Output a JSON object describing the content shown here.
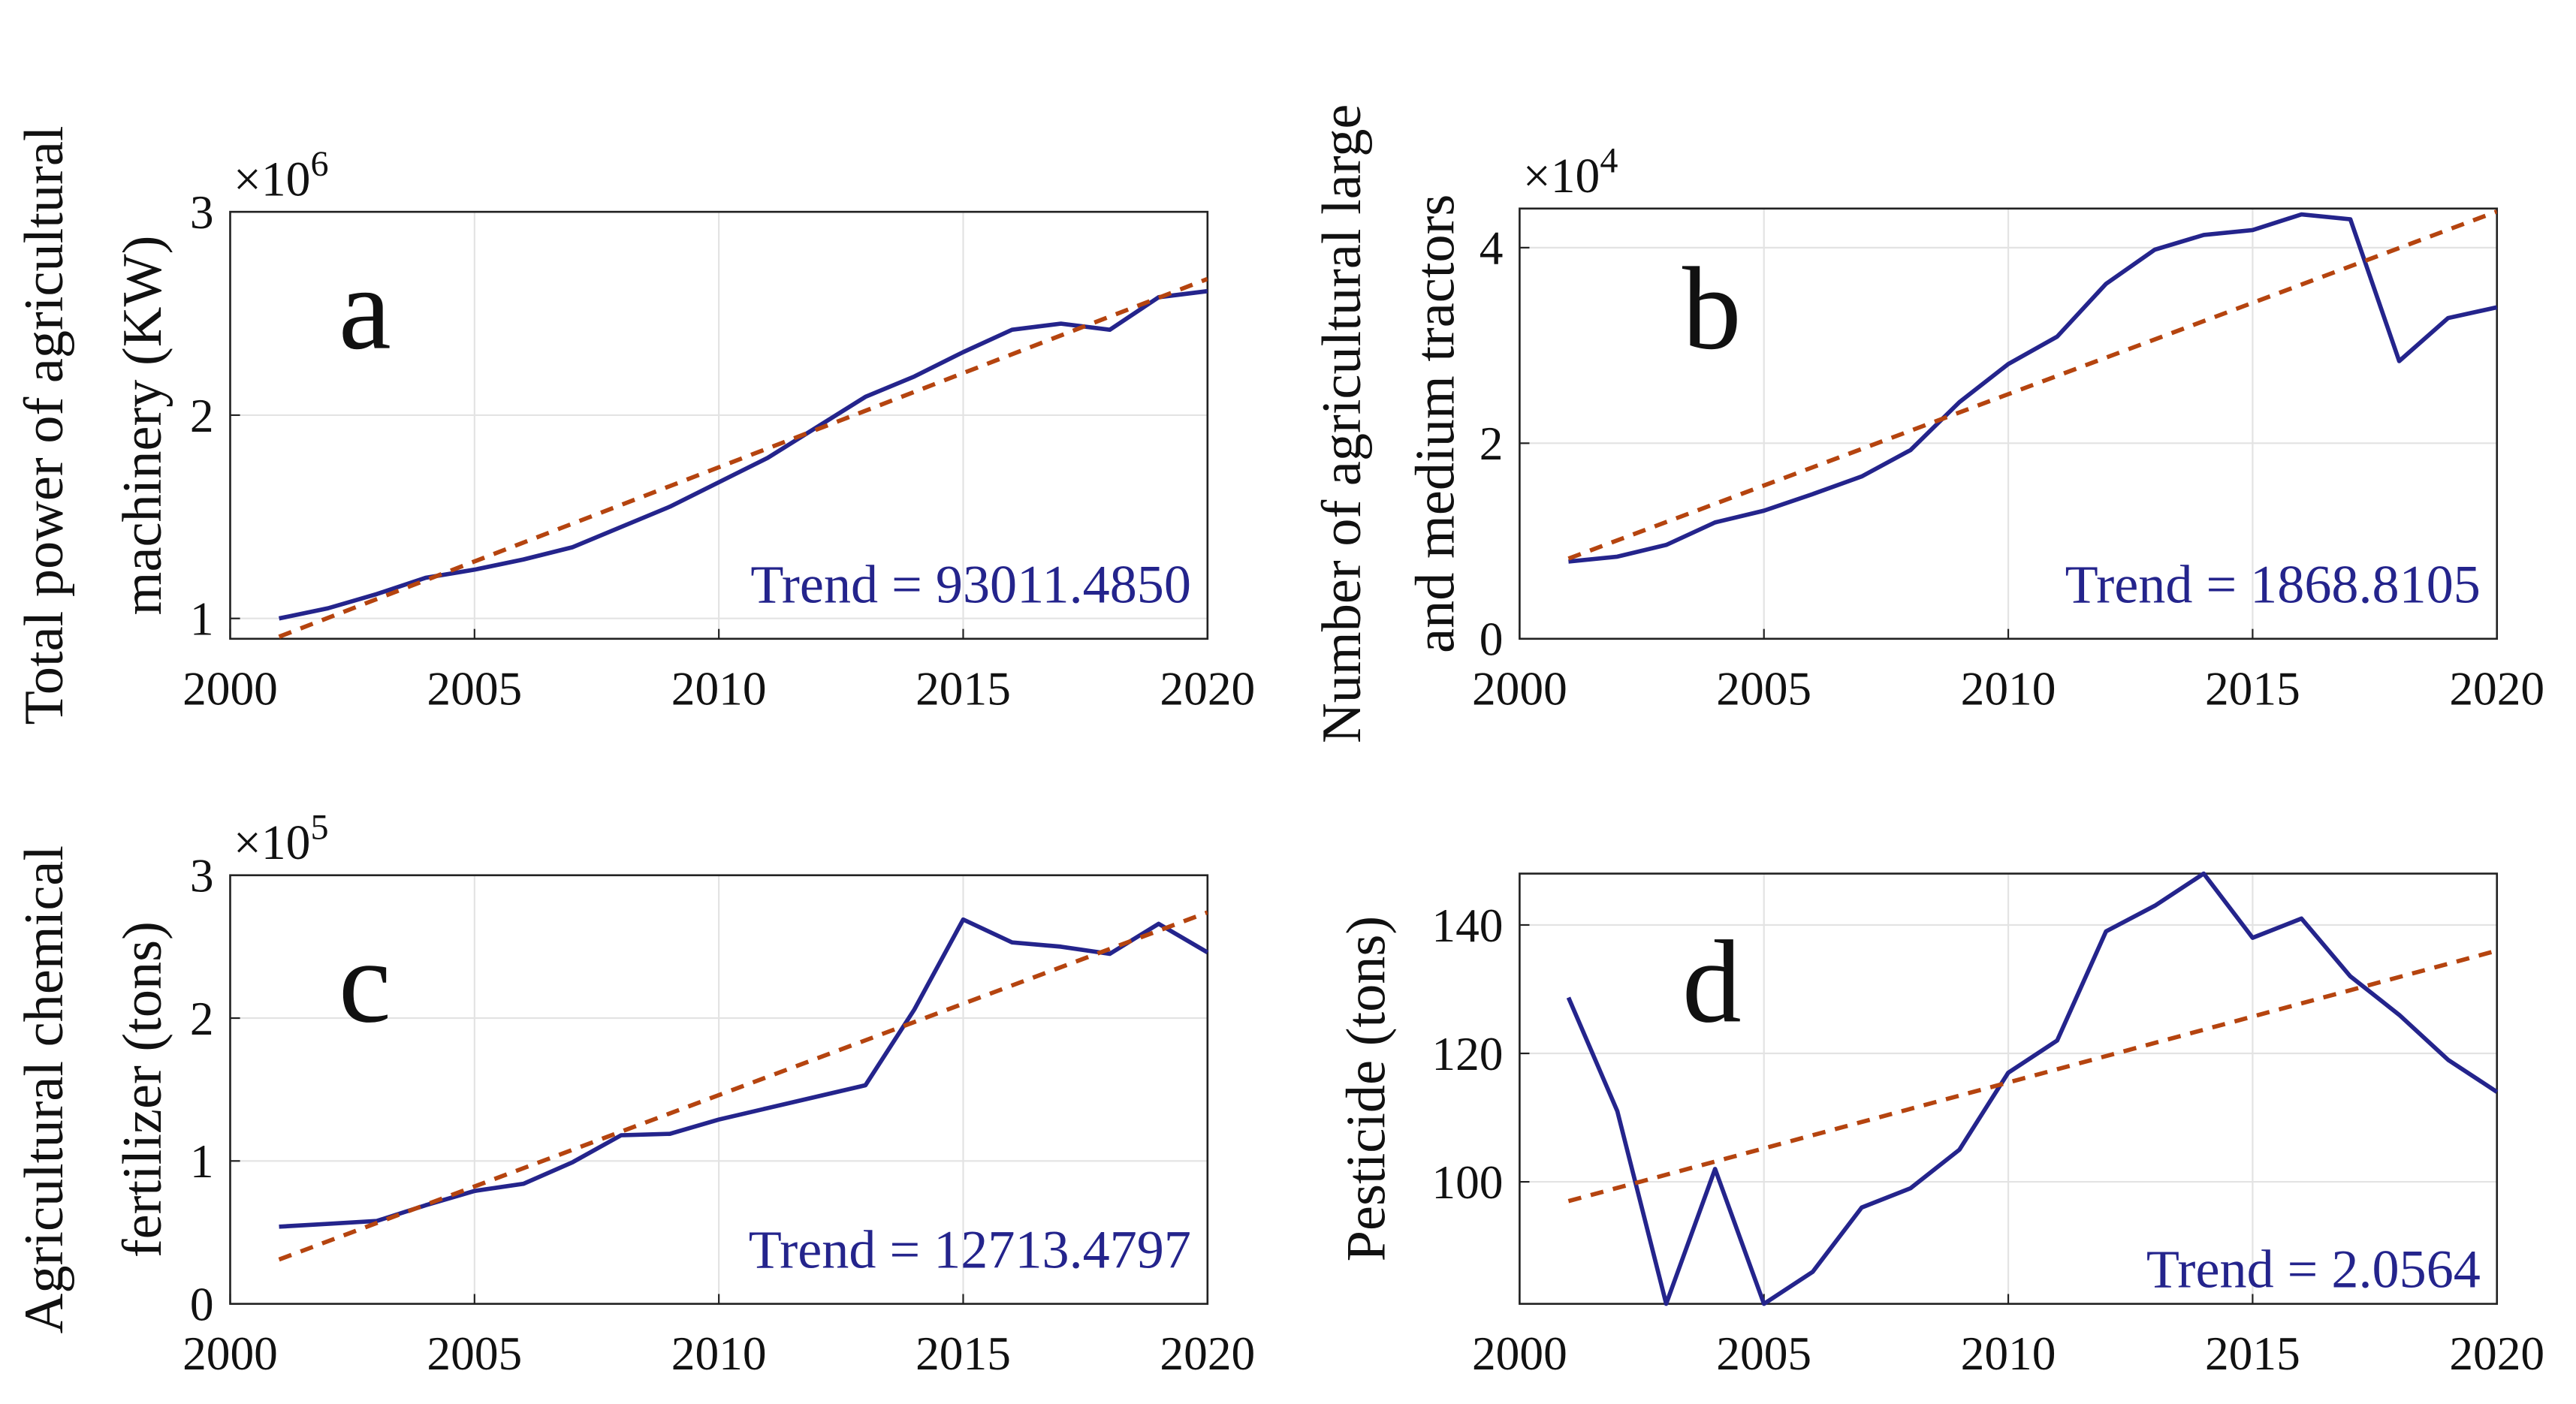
{
  "chart_data": [
    {
      "type": "line",
      "letter": "a",
      "y_label": [
        "Total power of agricultural",
        "machinery (KW)"
      ],
      "y_multiplier": {
        "base": "×10",
        "exponent": "6"
      },
      "annotation": "Trend = 93011.4850",
      "x": [
        2001,
        2002,
        2003,
        2004,
        2005,
        2006,
        2007,
        2008,
        2009,
        2010,
        2011,
        2012,
        2013,
        2014,
        2015,
        2016,
        2017,
        2018,
        2019,
        2020
      ],
      "series": [
        {
          "color": "#24248c",
          "values": [
            1.0,
            1.05,
            1.12,
            1.2,
            1.24,
            1.29,
            1.35,
            1.45,
            1.55,
            1.67,
            1.79,
            1.94,
            2.09,
            2.19,
            2.31,
            2.42,
            2.45,
            2.42,
            2.58,
            2.61
          ]
        }
      ],
      "trend": {
        "color": "#b5440f",
        "x": [
          2001,
          2020
        ],
        "values": [
          0.91,
          2.67
        ]
      },
      "xlim": [
        2000,
        2020
      ],
      "xticks": [
        2000,
        2005,
        2010,
        2015,
        2020
      ],
      "ylim": [
        0.9,
        3
      ],
      "yticks": [
        1,
        2,
        3
      ],
      "grid": true
    },
    {
      "type": "line",
      "letter": "b",
      "y_label": [
        "Number of agricultural large",
        "and medium tractors"
      ],
      "y_multiplier": {
        "base": "×10",
        "exponent": "4"
      },
      "annotation": "Trend = 1868.8105",
      "x": [
        2001,
        2002,
        2003,
        2004,
        2005,
        2006,
        2007,
        2008,
        2009,
        2010,
        2011,
        2012,
        2013,
        2014,
        2015,
        2016,
        2017,
        2018,
        2019,
        2020
      ],
      "series": [
        {
          "color": "#24248c",
          "values": [
            0.79,
            0.84,
            0.96,
            1.19,
            1.31,
            1.48,
            1.66,
            1.93,
            2.42,
            2.81,
            3.09,
            3.63,
            3.98,
            4.13,
            4.18,
            4.34,
            4.29,
            2.84,
            3.28,
            3.39
          ]
        }
      ],
      "trend": {
        "color": "#b5440f",
        "x": [
          2001,
          2020
        ],
        "values": [
          0.82,
          4.37
        ]
      },
      "xlim": [
        2000,
        2020
      ],
      "xticks": [
        2000,
        2005,
        2010,
        2015,
        2020
      ],
      "ylim": [
        0,
        4.4
      ],
      "yticks": [
        0,
        2,
        4
      ],
      "grid": true
    },
    {
      "type": "line",
      "letter": "c",
      "y_label": [
        "Agricultural chemical",
        "fertilizer (tons)"
      ],
      "y_multiplier": {
        "base": "×10",
        "exponent": "5"
      },
      "annotation": "Trend = 12713.4797",
      "x": [
        2001,
        2002,
        2003,
        2004,
        2005,
        2006,
        2007,
        2008,
        2009,
        2010,
        2011,
        2012,
        2013,
        2014,
        2015,
        2016,
        2017,
        2018,
        2019,
        2020
      ],
      "series": [
        {
          "color": "#24248c",
          "values": [
            0.54,
            0.56,
            0.58,
            0.69,
            0.79,
            0.84,
            0.99,
            1.18,
            1.19,
            1.29,
            1.37,
            1.45,
            1.53,
            2.06,
            2.69,
            2.53,
            2.5,
            2.45,
            2.66,
            2.46
          ]
        }
      ],
      "trend": {
        "color": "#b5440f",
        "x": [
          2001,
          2020
        ],
        "values": [
          0.31,
          2.74
        ]
      },
      "xlim": [
        2000,
        2020
      ],
      "xticks": [
        2000,
        2005,
        2010,
        2015,
        2020
      ],
      "ylim": [
        0,
        3
      ],
      "yticks": [
        0,
        1,
        2,
        3
      ],
      "grid": true
    },
    {
      "type": "line",
      "letter": "d",
      "y_label": [
        "Pesticide (tons)"
      ],
      "annotation": "Trend = 2.0564",
      "x": [
        2001,
        2002,
        2003,
        2004,
        2005,
        2006,
        2007,
        2008,
        2009,
        2010,
        2011,
        2012,
        2013,
        2014,
        2015,
        2016,
        2017,
        2018,
        2019,
        2020
      ],
      "series": [
        {
          "color": "#24248c",
          "values": [
            128.7,
            111,
            81,
            102,
            81,
            86,
            96,
            99,
            105,
            117,
            122,
            139,
            143,
            148,
            138,
            141,
            132,
            126,
            119,
            114
          ]
        }
      ],
      "trend": {
        "color": "#b5440f",
        "x": [
          2001,
          2020
        ],
        "values": [
          97,
          136
        ]
      },
      "xlim": [
        2000,
        2020
      ],
      "xticks": [
        2000,
        2005,
        2010,
        2015,
        2020
      ],
      "ylim": [
        81,
        148
      ],
      "yticks": [
        100,
        120,
        140
      ],
      "grid": true
    }
  ]
}
